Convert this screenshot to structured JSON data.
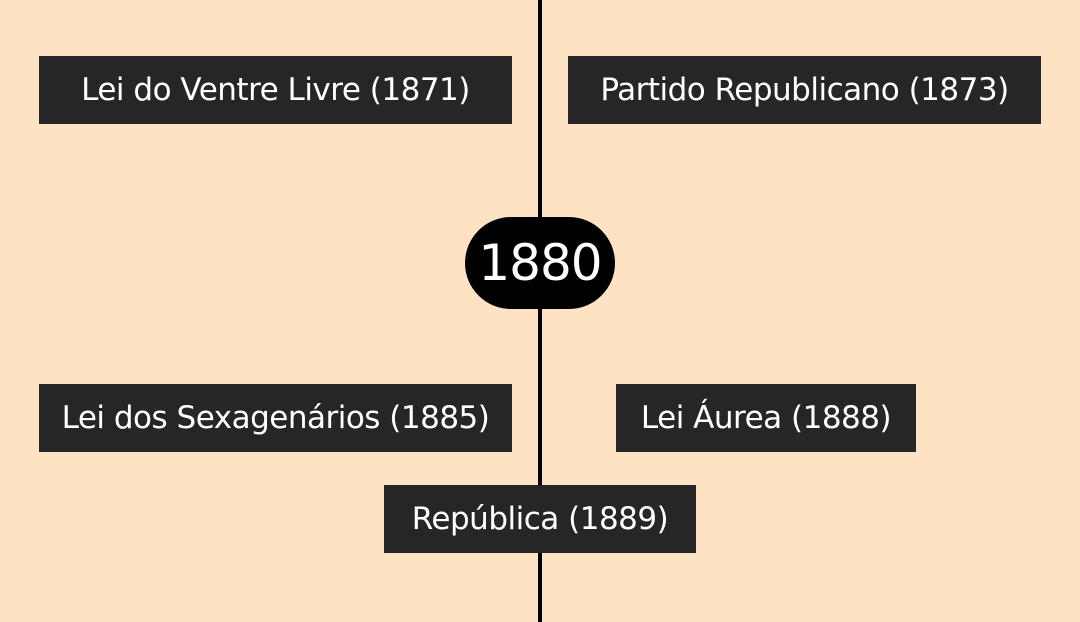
{
  "timeline": {
    "marker_year": "1880",
    "events": [
      {
        "label": "Lei do Ventre Livre (1871)"
      },
      {
        "label": "Partido Republicano (1873)"
      },
      {
        "label": "Lei dos Sexagenários (1885)"
      },
      {
        "label": "Lei Áurea (1888)"
      },
      {
        "label": "República (1889)"
      }
    ]
  },
  "colors": {
    "background": "#fde3c4",
    "event_box": "#262626",
    "axis": "#000000",
    "text": "#ffffff"
  }
}
